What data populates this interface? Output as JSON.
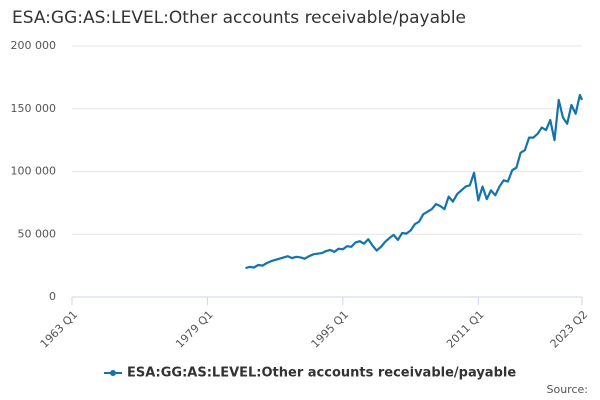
{
  "chart_data": {
    "type": "line",
    "title": "ESA:GG:AS:LEVEL:Other accounts receivable/payable",
    "source": "Source:",
    "x": [
      "1983 Q3",
      "1984 Q1",
      "1984 Q3",
      "1985 Q1",
      "1985 Q3",
      "1986 Q1",
      "1986 Q3",
      "1987 Q1",
      "1987 Q3",
      "1988 Q1",
      "1988 Q3",
      "1989 Q1",
      "1989 Q3",
      "1990 Q1",
      "1990 Q3",
      "1991 Q1",
      "1991 Q3",
      "1992 Q1",
      "1992 Q3",
      "1993 Q1",
      "1993 Q3",
      "1994 Q1",
      "1994 Q3",
      "1995 Q1",
      "1995 Q3",
      "1996 Q1",
      "1996 Q3",
      "1997 Q1",
      "1997 Q3",
      "1998 Q1",
      "1998 Q3",
      "1999 Q1",
      "1999 Q3",
      "2000 Q1",
      "2000 Q3",
      "2001 Q1",
      "2001 Q3",
      "2002 Q1",
      "2002 Q3",
      "2003 Q1",
      "2003 Q3",
      "2004 Q1",
      "2004 Q3",
      "2005 Q1",
      "2005 Q3",
      "2006 Q1",
      "2006 Q3",
      "2007 Q1",
      "2007 Q3",
      "2008 Q1",
      "2008 Q3",
      "2009 Q1",
      "2009 Q3",
      "2010 Q1",
      "2010 Q3",
      "2011 Q1",
      "2011 Q3",
      "2012 Q1",
      "2012 Q3",
      "2013 Q1",
      "2013 Q3",
      "2014 Q1",
      "2014 Q3",
      "2015 Q1",
      "2015 Q3",
      "2016 Q1",
      "2016 Q3",
      "2017 Q1",
      "2017 Q3",
      "2018 Q1",
      "2018 Q3",
      "2019 Q1",
      "2019 Q3",
      "2020 Q1",
      "2020 Q3",
      "2021 Q1",
      "2021 Q3",
      "2022 Q1",
      "2022 Q3",
      "2023 Q1",
      "2023 Q2"
    ],
    "series": [
      {
        "name": "ESA:GG:AS:LEVEL:Other accounts receivable/payable",
        "color": "#1273ad",
        "values": [
          23000,
          24000,
          23500,
          25500,
          25000,
          27000,
          28500,
          29500,
          30500,
          31500,
          32500,
          31000,
          32000,
          31500,
          30500,
          32500,
          34000,
          34500,
          35000,
          36500,
          37500,
          36000,
          38500,
          38000,
          40500,
          40000,
          43500,
          44500,
          42500,
          46000,
          41000,
          37000,
          40000,
          44000,
          47000,
          49500,
          45500,
          51000,
          50500,
          53000,
          58000,
          60000,
          66000,
          68000,
          70000,
          74000,
          72500,
          70000,
          80000,
          76000,
          82000,
          85000,
          88000,
          89000,
          99000,
          77000,
          88000,
          78000,
          85000,
          81000,
          88000,
          93000,
          92000,
          101000,
          103000,
          115000,
          117000,
          127000,
          127000,
          130000,
          135000,
          133000,
          141000,
          125000,
          157000,
          143000,
          138000,
          153000,
          146000,
          161000,
          157000
        ]
      }
    ],
    "xlim": [
      "1963 Q1",
      "2023 Q2"
    ],
    "xticks": [
      "1963 Q1",
      "1979 Q1",
      "1995 Q1",
      "2011 Q1",
      "2023 Q2"
    ],
    "ylim": [
      0,
      200000
    ],
    "yticks": [
      0,
      {
        "value": 50000,
        "label": "50 000"
      },
      {
        "value": 100000,
        "label": "100 000"
      },
      {
        "value": 150000,
        "label": "150 000"
      },
      {
        "value": 200000,
        "label": "200 000"
      }
    ],
    "grid": true
  }
}
